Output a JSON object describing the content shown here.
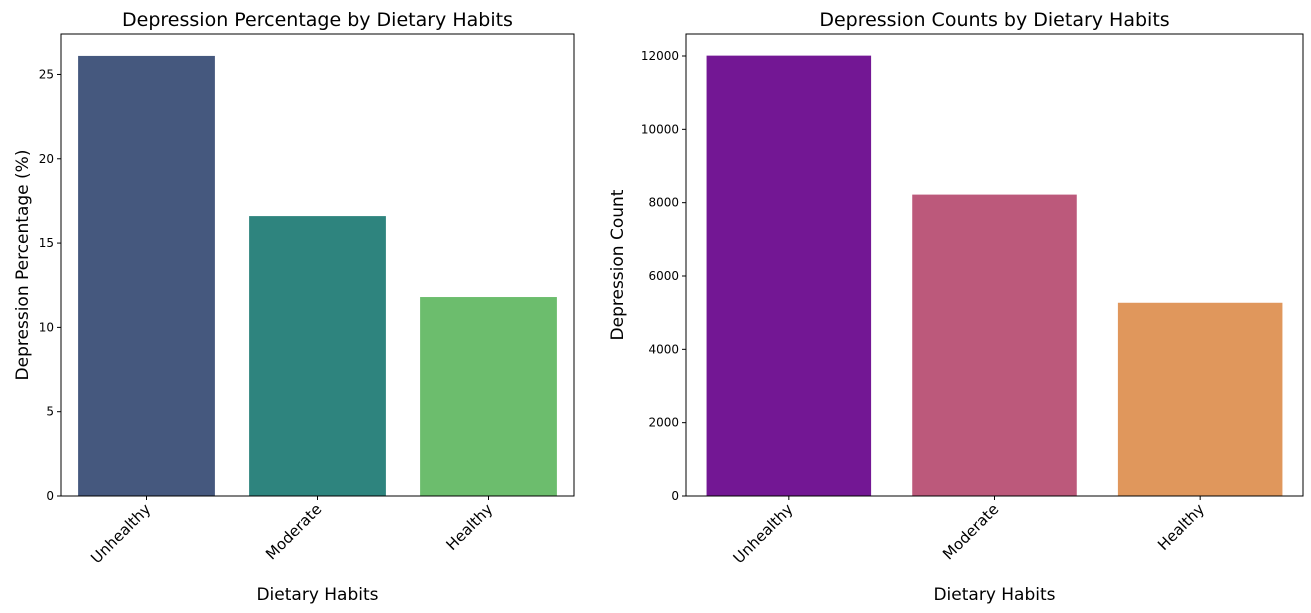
{
  "chart_data": [
    {
      "type": "bar",
      "title": "Depression Percentage by Dietary Habits",
      "xlabel": "Dietary Habits",
      "ylabel": "Depression Percentage (%)",
      "categories": [
        "Unhealthy",
        "Moderate",
        "Healthy"
      ],
      "values": [
        26.1,
        16.6,
        11.8
      ],
      "colors": [
        "#45587e",
        "#2e847e",
        "#6cbd6d"
      ],
      "ylim": [
        0,
        27.4
      ],
      "yticks": [
        0,
        5,
        10,
        15,
        20,
        25
      ],
      "ytick_labels": [
        "0",
        "5",
        "10",
        "15",
        "20",
        "25"
      ],
      "grid": false,
      "legend": "none"
    },
    {
      "type": "bar",
      "title": "Depression Counts by Dietary Habits",
      "xlabel": "Dietary Habits",
      "ylabel": "Depression Count",
      "categories": [
        "Unhealthy",
        "Moderate",
        "Healthy"
      ],
      "values": [
        12010,
        8220,
        5270
      ],
      "colors": [
        "#731794",
        "#bc597b",
        "#e0975c"
      ],
      "ylim": [
        0,
        12600
      ],
      "yticks": [
        0,
        2000,
        4000,
        6000,
        8000,
        10000,
        12000
      ],
      "ytick_labels": [
        "0",
        "2000",
        "4000",
        "6000",
        "8000",
        "10000",
        "12000"
      ],
      "grid": false,
      "legend": "none"
    }
  ]
}
